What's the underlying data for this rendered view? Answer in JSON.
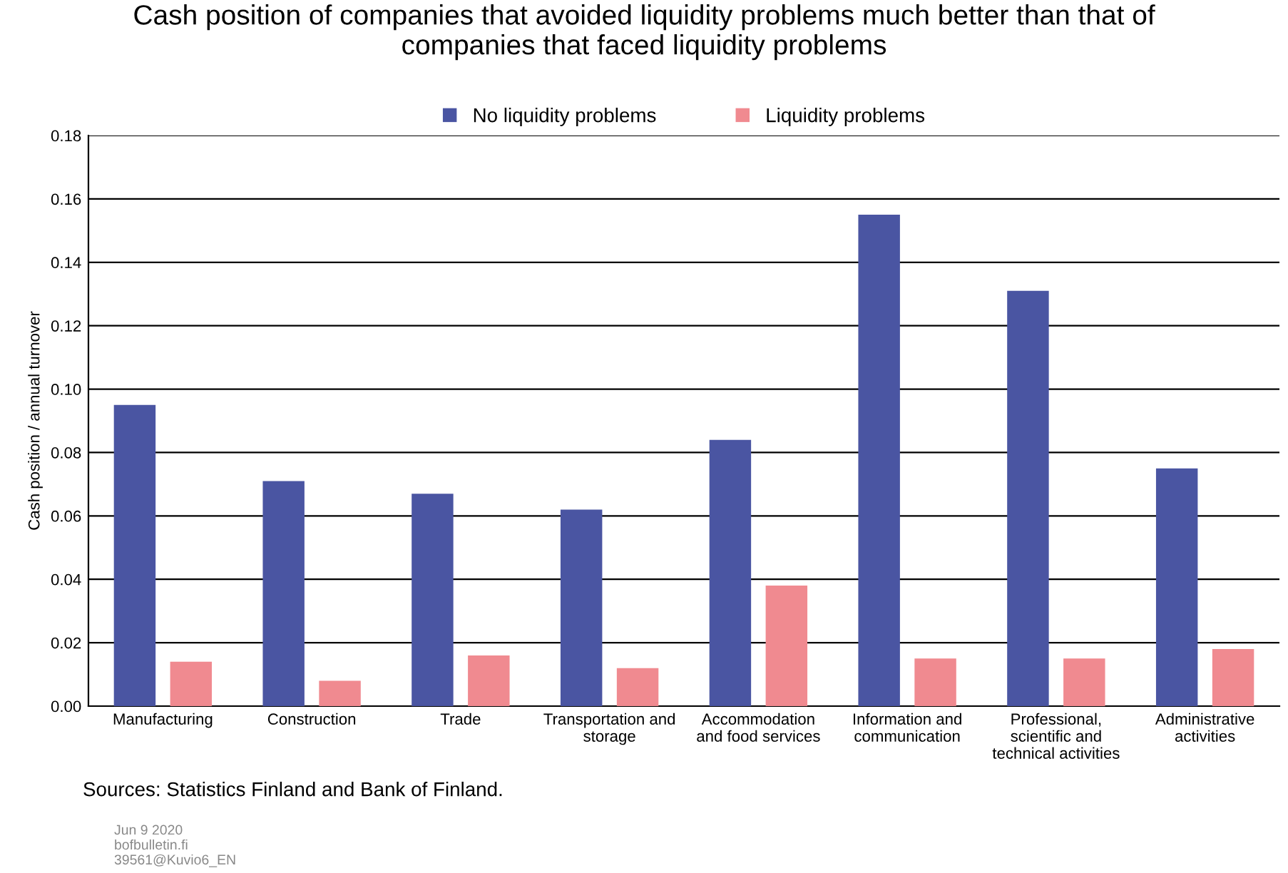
{
  "chart_data": {
    "type": "bar",
    "title": "Cash position of companies that avoided liquidity problems much better than that of\ncompanies that faced liquidity problems",
    "ylabel": "Cash position / annual turnover",
    "categories": [
      "Manufacturing",
      "Construction",
      "Trade",
      "Transportation and\nstorage",
      "Accommodation\nand food services",
      "Information and\ncommunication",
      "Professional,\nscientific and\ntechnical activities",
      "Administrative\nactivities"
    ],
    "series": [
      {
        "name": "No liquidity problems",
        "color": "#4a55a2",
        "values": [
          0.095,
          0.071,
          0.067,
          0.062,
          0.084,
          0.155,
          0.131,
          0.075
        ]
      },
      {
        "name": "Liquidity problems",
        "color": "#f08a90",
        "values": [
          0.014,
          0.008,
          0.016,
          0.012,
          0.038,
          0.015,
          0.015,
          0.018
        ]
      }
    ],
    "ylim": [
      0,
      0.18
    ],
    "yticks": [
      {
        "value": 0,
        "label": "0.00"
      },
      {
        "value": 0.02,
        "label": "0.02"
      },
      {
        "value": 0.04,
        "label": "0.04"
      },
      {
        "value": 0.06,
        "label": "0.06"
      },
      {
        "value": 0.08,
        "label": "0.08"
      },
      {
        "value": 0.1,
        "label": "0.10"
      },
      {
        "value": 0.12,
        "label": "0.12"
      },
      {
        "value": 0.14,
        "label": "0.14"
      },
      {
        "value": 0.16,
        "label": "0.16"
      },
      {
        "value": 0.18,
        "label": "0.18"
      }
    ],
    "grid": "y",
    "legend": "top",
    "annotations": [
      "Sources: Statistics Finland and Bank of Finland.",
      "Jun 9 2020\nbofbulletin.fi\n39561@Kuvio6_EN"
    ]
  }
}
